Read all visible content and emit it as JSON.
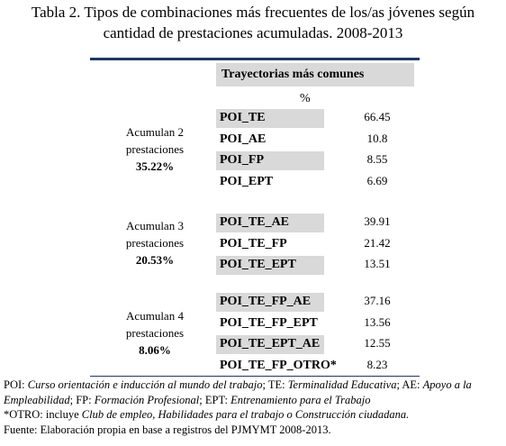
{
  "title": [
    "Tabla 2. Tipos de combinaciones más frecuentes de los/as jóvenes según",
    "cantidad de prestaciones acumuladas. 2008-2013"
  ],
  "table": {
    "header": "Trayectorias más comunes",
    "unit": "%",
    "groups": [
      {
        "label": [
          "Acumulan 2",
          "prestaciones",
          "35.22%"
        ],
        "rows": [
          [
            "POI_TE",
            "66.45"
          ],
          [
            "POI_AE",
            "10.8"
          ],
          [
            "POI_FP",
            "8.55"
          ],
          [
            "POI_EPT",
            "6.69"
          ]
        ]
      },
      {
        "label": [
          "Acumulan 3",
          "prestaciones",
          "20.53%"
        ],
        "rows": [
          [
            "POI_TE_AE",
            "39.91"
          ],
          [
            "POI_TE_FP",
            "21.42"
          ],
          [
            "POI_TE_EPT",
            "13.51"
          ]
        ]
      },
      {
        "label": [
          "Acumulan 4",
          "prestaciones",
          "8.06%"
        ],
        "rows": [
          [
            "POI_TE_FP_AE",
            "37.16"
          ],
          [
            "POI_TE_FP_EPT",
            "13.56"
          ],
          [
            "POI_TE_EPT_AE",
            "12.55"
          ],
          [
            "POI_TE_FP_OTRO*",
            "8.23"
          ]
        ]
      }
    ]
  },
  "notes": [
    [
      {
        "text": "POI: ",
        "italic": false
      },
      {
        "text": "Curso orientación e inducción al mundo del trabajo",
        "italic": true
      },
      {
        "text": "; TE: ",
        "italic": false
      },
      {
        "text": "Terminalidad Educativa",
        "italic": true
      },
      {
        "text": "; AE: ",
        "italic": false
      },
      {
        "text": "Apoyo a la Empleabilidad",
        "italic": true
      },
      {
        "text": "; FP: ",
        "italic": false
      },
      {
        "text": "Formación Profesional",
        "italic": true
      },
      {
        "text": "; EPT: ",
        "italic": false
      },
      {
        "text": "Entrenamiento para el Trabajo",
        "italic": true
      }
    ],
    [
      {
        "text": "*OTRO: incluye ",
        "italic": false
      },
      {
        "text": "Club de empleo, Habilidades para el trabajo o Construcción ciudadana.",
        "italic": true
      }
    ],
    [
      {
        "text": "Fuente: Elaboración propia en base a registros del PJMYMT 2008-2013.",
        "italic": false
      }
    ]
  ]
}
